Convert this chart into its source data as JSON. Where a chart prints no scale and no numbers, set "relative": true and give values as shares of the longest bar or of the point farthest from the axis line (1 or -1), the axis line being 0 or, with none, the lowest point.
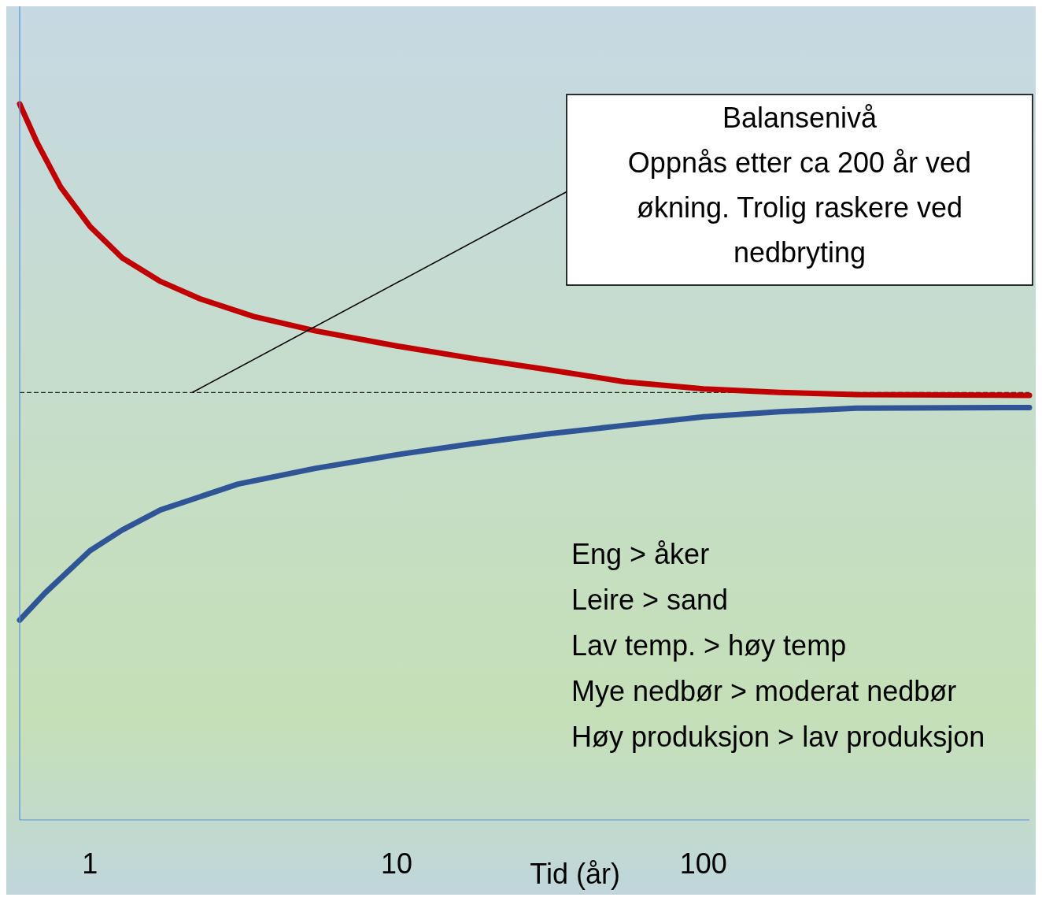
{
  "chart_data": {
    "type": "line",
    "relative": true,
    "log": "x",
    "xlabel": "Tid (år)",
    "xlim": [
      0.59,
      1156
    ],
    "xticks": [
      1,
      10,
      100
    ],
    "marker": "none",
    "line_style": "solid",
    "series": [
      {
        "color": "#c00000",
        "x": [
          0.59,
          0.674,
          0.802,
          1,
          1.275,
          1.7,
          2.28,
          3.42,
          5.44,
          10,
          17.4,
          31,
          55.3,
          100,
          177,
          315,
          1156
        ],
        "values": [
          1,
          0.945,
          0.884,
          0.829,
          0.785,
          0.752,
          0.728,
          0.703,
          0.683,
          0.662,
          0.645,
          0.629,
          0.612,
          0.602,
          0.597,
          0.594,
          0.593
        ]
      },
      {
        "color": "#2f5597",
        "x": [
          0.59,
          0.714,
          1,
          1.275,
          1.7,
          3.04,
          5.44,
          10,
          17.4,
          31,
          55.3,
          100,
          177,
          315,
          1156
        ],
        "values": [
          0.279,
          0.317,
          0.376,
          0.405,
          0.433,
          0.469,
          0.491,
          0.51,
          0.525,
          0.539,
          0.551,
          0.563,
          0.57,
          0.575,
          0.576
        ]
      }
    ],
    "ref_lines": [
      {
        "axis": "y",
        "value": 0.597,
        "color": "#000000",
        "line_style": "dashed"
      }
    ],
    "annotations": [
      "Balansenivå\nOppnås etter ca 200 år ved\nøkning. Trolig raskere ved\nnedbryting",
      "Eng > åker\nLeire > sand\nLav temp. > høy temp\nMye nedbør > moderat nedbør\nHøy produksjon > lav produksjon"
    ]
  }
}
